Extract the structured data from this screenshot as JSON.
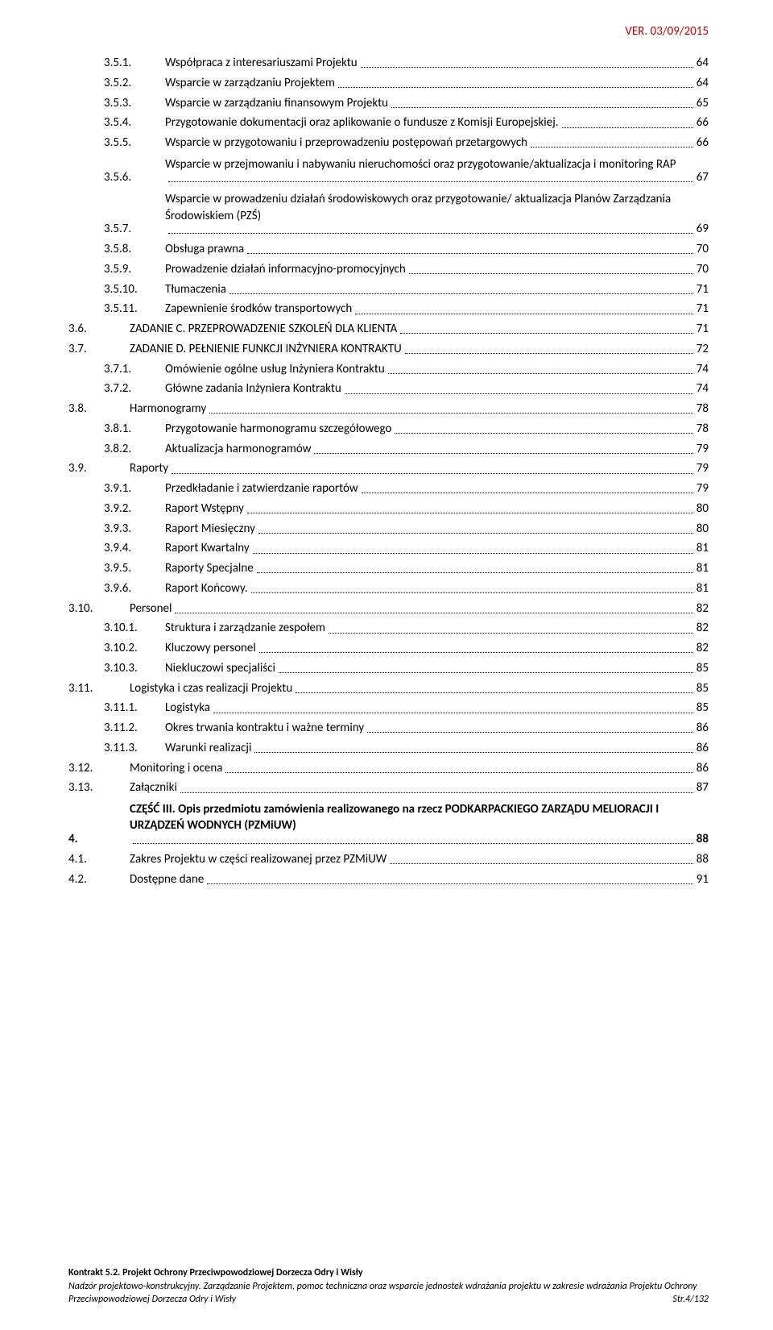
{
  "version": "VER. 03/09/2015",
  "toc": [
    {
      "num": "3.5.1.",
      "label": "Współpraca z interesariuszami Projektu",
      "page": "64",
      "level": 3
    },
    {
      "num": "3.5.2.",
      "label": "Wsparcie w zarządzaniu Projektem",
      "page": "64",
      "level": 3
    },
    {
      "num": "3.5.3.",
      "label": "Wsparcie w zarządzaniu finansowym Projektu",
      "page": "65",
      "level": 3
    },
    {
      "num": "3.5.4.",
      "label": "Przygotowanie dokumentacji oraz aplikowanie o fundusze z Komisji Europejskiej.",
      "page": "66",
      "level": 3
    },
    {
      "num": "3.5.5.",
      "label": "Wsparcie w przygotowaniu i przeprowadzeniu postępowań przetargowych",
      "page": "66",
      "level": 3
    },
    {
      "num": "3.5.6.",
      "label": "Wsparcie w przejmowaniu i nabywaniu nieruchomości oraz przygotowanie/aktualizacja i monitoring RAP",
      "page": "67",
      "level": 3,
      "multiline": true
    },
    {
      "num": "3.5.7.",
      "label": "Wsparcie w prowadzeniu działań środowiskowych oraz przygotowanie/ aktualizacja Planów Zarządzania Środowiskiem (PZŚ)",
      "page": "69",
      "level": 3,
      "multiline": true
    },
    {
      "num": "3.5.8.",
      "label": "Obsługa prawna",
      "page": "70",
      "level": 3
    },
    {
      "num": "3.5.9.",
      "label": "Prowadzenie działań informacyjno-promocyjnych",
      "page": "70",
      "level": 3
    },
    {
      "num": "3.5.10.",
      "label": "Tłumaczenia",
      "page": "71",
      "level": 3
    },
    {
      "num": "3.5.11.",
      "label": "Zapewnienie środków transportowych",
      "page": "71",
      "level": 3
    },
    {
      "num": "3.6.",
      "label": "ZADANIE C. PRZEPROWADZENIE SZKOLEŃ DLA KLIENTA",
      "page": "71",
      "level": 2
    },
    {
      "num": "3.7.",
      "label": "ZADANIE D. PEŁNIENIE FUNKCJI INŻYNIERA KONTRAKTU",
      "page": "72",
      "level": 2
    },
    {
      "num": "3.7.1.",
      "label": "Omówienie ogólne usług Inżyniera Kontraktu",
      "page": "74",
      "level": 3
    },
    {
      "num": "3.7.2.",
      "label": "Główne zadania Inżyniera Kontraktu",
      "page": "74",
      "level": 3
    },
    {
      "num": "3.8.",
      "label": "Harmonogramy",
      "page": "78",
      "level": 2
    },
    {
      "num": "3.8.1.",
      "label": "Przygotowanie harmonogramu szczegółowego",
      "page": "78",
      "level": 3
    },
    {
      "num": "3.8.2.",
      "label": "Aktualizacja harmonogramów",
      "page": "79",
      "level": 3
    },
    {
      "num": "3.9.",
      "label": "Raporty",
      "page": "79",
      "level": 2
    },
    {
      "num": "3.9.1.",
      "label": "Przedkładanie i zatwierdzanie raportów",
      "page": "79",
      "level": 3
    },
    {
      "num": "3.9.2.",
      "label": "Raport Wstępny",
      "page": "80",
      "level": 3
    },
    {
      "num": "3.9.3.",
      "label": "Raport Miesięczny",
      "page": "80",
      "level": 3
    },
    {
      "num": "3.9.4.",
      "label": "Raport Kwartalny",
      "page": "81",
      "level": 3
    },
    {
      "num": "3.9.5.",
      "label": "Raporty Specjalne",
      "page": "81",
      "level": 3
    },
    {
      "num": "3.9.6.",
      "label": "Raport Końcowy.",
      "page": "81",
      "level": 3
    },
    {
      "num": "3.10.",
      "label": "Personel",
      "page": "82",
      "level": 2
    },
    {
      "num": "3.10.1.",
      "label": "Struktura i zarządzanie zespołem",
      "page": "82",
      "level": 3
    },
    {
      "num": "3.10.2.",
      "label": "Kluczowy personel",
      "page": "82",
      "level": 3
    },
    {
      "num": "3.10.3.",
      "label": "Niekluczowi specjaliści",
      "page": "85",
      "level": 3
    },
    {
      "num": "3.11.",
      "label": "Logistyka i czas realizacji Projektu",
      "page": "85",
      "level": 2
    },
    {
      "num": "3.11.1.",
      "label": "Logistyka",
      "page": "85",
      "level": 3
    },
    {
      "num": "3.11.2.",
      "label": "Okres trwania kontraktu i ważne terminy",
      "page": "86",
      "level": 3
    },
    {
      "num": "3.11.3.",
      "label": "Warunki realizacji",
      "page": "86",
      "level": 3
    },
    {
      "num": "3.12.",
      "label": "Monitoring i ocena",
      "page": "86",
      "level": 2
    },
    {
      "num": "3.13.",
      "label": "Załączniki",
      "page": "87",
      "level": 2
    },
    {
      "num": "4.",
      "label": "CZĘŚĆ III. Opis przedmiotu zamówienia realizowanego na rzecz PODKARPACKIEGO ZARZĄDU MELIORACJI I URZĄDZEŃ WODNYCH (PZMiUW)",
      "page": "88",
      "level": 1,
      "bold": true,
      "multiline": true
    },
    {
      "num": "4.1.",
      "label": "Zakres Projektu w części realizowanej przez PZMiUW",
      "page": "88",
      "level": 2
    },
    {
      "num": "4.2.",
      "label": "Dostępne dane",
      "page": "91",
      "level": 2
    }
  ],
  "footer": {
    "line1_bold": "Kontrakt 5.2. Projekt Ochrony Przeciwpowodziowej Dorzecza Odry i Wisły",
    "line2": "Nadzór projektowo-konstrukcyjny. Zarządzanie Projektem, pomoc techniczna oraz wsparcie jednostek wdrażania projektu w zakresie wdrażania Projektu Ochrony Przeciwpowodziowej Dorzecza Odry i Wisły",
    "page_label": "Str.4/132"
  }
}
